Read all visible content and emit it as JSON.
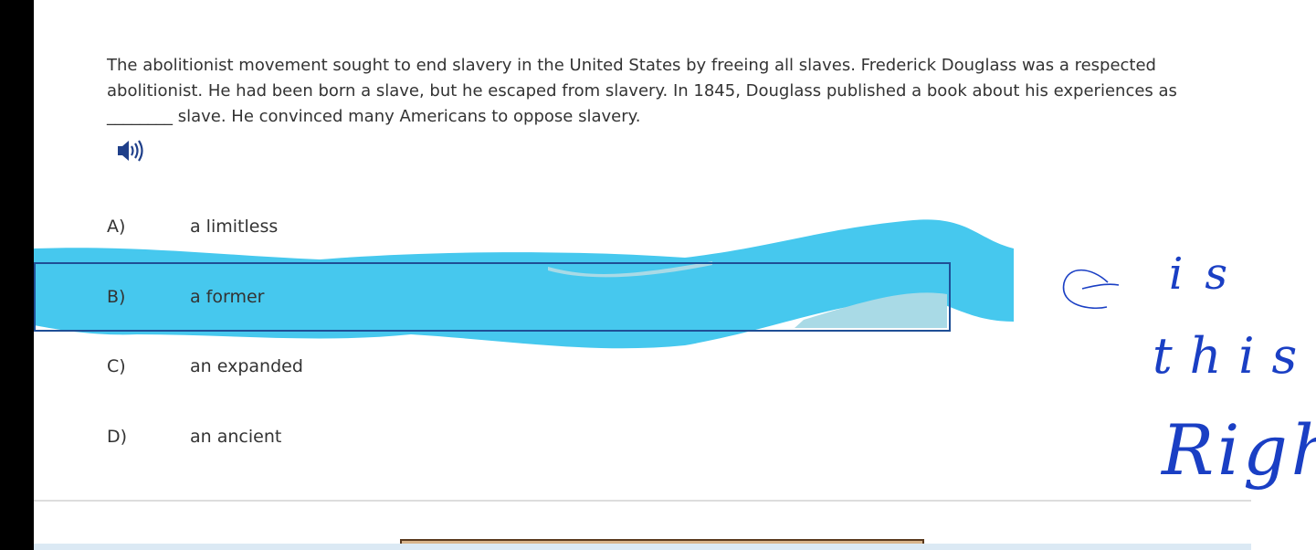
{
  "passage": "The abolitionist movement sought to end slavery in the United States by freeing all slaves. Frederick Douglass was a respected abolitionist. He had been born a slave, but he escaped from slavery. In 1845, Douglass published a book about his experiences as ________ slave. He convinced many Americans to oppose slavery.",
  "options": [
    {
      "letter": "A)",
      "text": "a limitless"
    },
    {
      "letter": "B)",
      "text": "a former"
    },
    {
      "letter": "C)",
      "text": "an expanded"
    },
    {
      "letter": "D)",
      "text": "an ancient"
    }
  ],
  "annotation": [
    "is",
    "this",
    "Right"
  ]
}
